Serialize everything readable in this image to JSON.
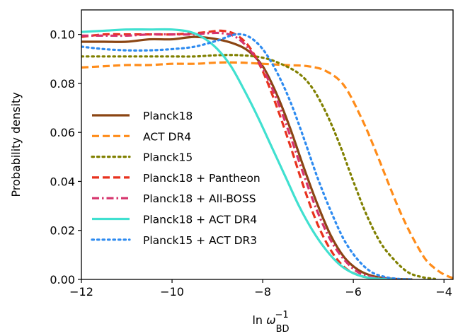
{
  "chart_data": {
    "type": "line",
    "title": "",
    "xlabel": "ln ω_BD^-1",
    "ylabel": "Probability density",
    "xlim": [
      -12,
      -3.8
    ],
    "ylim": [
      0,
      0.11
    ],
    "xticks": [
      -12,
      -10,
      -8,
      -6,
      -4
    ],
    "xtick_labels": [
      "−12",
      "−10",
      "−8",
      "−6",
      "−4"
    ],
    "yticks": [
      0.0,
      0.02,
      0.04,
      0.06,
      0.08,
      0.1
    ],
    "ytick_labels": [
      "0.00",
      "0.02",
      "0.04",
      "0.06",
      "0.08",
      "0.10"
    ],
    "grid": false,
    "legend_position": "left",
    "series": [
      {
        "name": "Planck18",
        "color": "#8B4513",
        "linestyle": "solid",
        "x": [
          -12,
          -11.5,
          -11,
          -10.5,
          -10,
          -9.5,
          -9,
          -8.6,
          -8.3,
          -8,
          -7.7,
          -7.4,
          -7.1,
          -6.8,
          -6.5,
          -6.2,
          -5.9,
          -5.6,
          -5.3,
          -5.0,
          -4.7
        ],
        "y": [
          0.097,
          0.097,
          0.097,
          0.098,
          0.098,
          0.099,
          0.098,
          0.096,
          0.093,
          0.087,
          0.076,
          0.062,
          0.046,
          0.031,
          0.018,
          0.009,
          0.004,
          0.0015,
          0.0005,
          0.0001,
          0.0
        ]
      },
      {
        "name": "ACT DR4",
        "color": "#FF8C1A",
        "linestyle": "dashed",
        "x": [
          -12,
          -11.5,
          -11,
          -10.5,
          -10,
          -9.5,
          -9,
          -8.5,
          -8,
          -7.5,
          -7,
          -6.6,
          -6.2,
          -5.8,
          -5.5,
          -5.2,
          -5.0,
          -4.8,
          -4.6,
          -4.4,
          -4.2,
          -4.0,
          -3.8
        ],
        "y": [
          0.0865,
          0.087,
          0.0875,
          0.0875,
          0.088,
          0.088,
          0.0885,
          0.0885,
          0.088,
          0.0875,
          0.087,
          0.085,
          0.079,
          0.065,
          0.052,
          0.038,
          0.029,
          0.021,
          0.014,
          0.008,
          0.0045,
          0.002,
          0.0005
        ]
      },
      {
        "name": "Planck15",
        "color": "#808000",
        "linestyle": "dotted",
        "x": [
          -12,
          -11.5,
          -11,
          -10.5,
          -10,
          -9.5,
          -9,
          -8.5,
          -8,
          -7.6,
          -7.2,
          -6.9,
          -6.6,
          -6.3,
          -6.0,
          -5.7,
          -5.4,
          -5.1,
          -4.8,
          -4.5,
          -4.2
        ],
        "y": [
          0.091,
          0.091,
          0.091,
          0.091,
          0.091,
          0.091,
          0.0915,
          0.0915,
          0.0905,
          0.088,
          0.084,
          0.078,
          0.068,
          0.055,
          0.04,
          0.026,
          0.015,
          0.008,
          0.003,
          0.001,
          0.0002
        ]
      },
      {
        "name": "Planck18 + Pantheon",
        "color": "#E8321E",
        "linestyle": "dashed",
        "x": [
          -12,
          -11.5,
          -11,
          -10.5,
          -10,
          -9.5,
          -9.2,
          -8.9,
          -8.6,
          -8.3,
          -8,
          -7.7,
          -7.4,
          -7.1,
          -6.8,
          -6.5,
          -6.2,
          -5.9,
          -5.6,
          -5.3,
          -5.0
        ],
        "y": [
          0.099,
          0.1,
          0.1,
          0.1,
          0.1,
          0.1005,
          0.101,
          0.1015,
          0.1,
          0.095,
          0.085,
          0.071,
          0.055,
          0.038,
          0.023,
          0.012,
          0.005,
          0.0018,
          0.0005,
          0.0001,
          0.0
        ]
      },
      {
        "name": "Planck18 + All-BOSS",
        "color": "#D6336C",
        "linestyle": "dashdot",
        "x": [
          -12,
          -11.5,
          -11,
          -10.5,
          -10,
          -9.5,
          -9.2,
          -8.9,
          -8.6,
          -8.3,
          -8,
          -7.7,
          -7.4,
          -7.1,
          -6.8,
          -6.5,
          -6.2,
          -5.9,
          -5.6,
          -5.3,
          -5.0
        ],
        "y": [
          0.0995,
          0.0995,
          0.0995,
          0.1,
          0.1,
          0.1,
          0.1005,
          0.1005,
          0.099,
          0.094,
          0.086,
          0.074,
          0.059,
          0.043,
          0.028,
          0.016,
          0.008,
          0.003,
          0.001,
          0.0003,
          0.0
        ]
      },
      {
        "name": "Planck18 + ACT DR4",
        "color": "#40E0D0",
        "linestyle": "solid",
        "x": [
          -12,
          -11.5,
          -11,
          -10.5,
          -10,
          -9.6,
          -9.3,
          -9.0,
          -8.7,
          -8.4,
          -8.1,
          -7.8,
          -7.5,
          -7.2,
          -6.9,
          -6.6,
          -6.3,
          -6.0,
          -5.7,
          -5.4,
          -5.1
        ],
        "y": [
          0.101,
          0.1015,
          0.102,
          0.102,
          0.102,
          0.101,
          0.0985,
          0.094,
          0.087,
          0.077,
          0.066,
          0.054,
          0.042,
          0.03,
          0.02,
          0.012,
          0.006,
          0.0025,
          0.0008,
          0.0002,
          0.0
        ]
      },
      {
        "name": "Planck15 + ACT DR3",
        "color": "#2E8BF0",
        "linestyle": "dotted",
        "x": [
          -12,
          -11.5,
          -11,
          -10.5,
          -10,
          -9.5,
          -9.0,
          -8.6,
          -8.3,
          -8.0,
          -7.7,
          -7.4,
          -7.1,
          -6.8,
          -6.5,
          -6.2,
          -5.9,
          -5.6,
          -5.3,
          -5.0,
          -4.7
        ],
        "y": [
          0.095,
          0.094,
          0.0935,
          0.0935,
          0.094,
          0.095,
          0.0975,
          0.1,
          0.099,
          0.094,
          0.085,
          0.073,
          0.058,
          0.042,
          0.028,
          0.016,
          0.008,
          0.003,
          0.001,
          0.0002,
          0.0
        ]
      }
    ]
  }
}
